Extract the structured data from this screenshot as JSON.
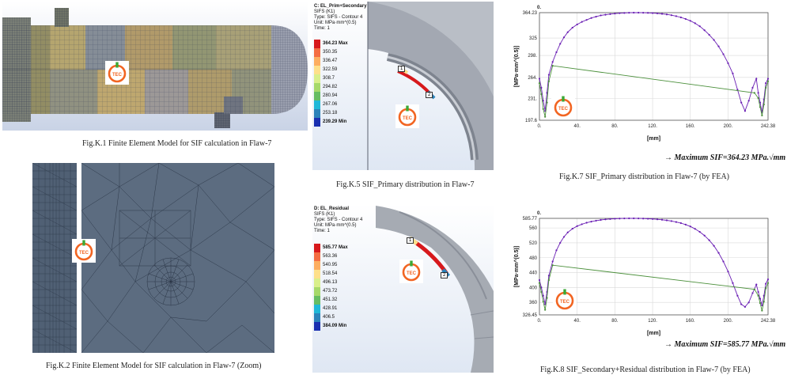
{
  "figures": {
    "k1": {
      "caption": "Fig.K.1 Finite Element Model for SIF calculation in Flaw-7"
    },
    "k2": {
      "caption": "Fig.K.2 Finite Element Model for SIF calculation in Flaw-7 (Zoom)"
    },
    "k5": {
      "caption": "Fig.K.5 SIF_Primary distribution in Flaw-7",
      "header": [
        "C: EL_Prim+Secondary",
        "SIFS (K1)",
        "Type: SIFS - Contour 4",
        "Unit: MPa·mm^(0.5)",
        "Time: 1"
      ],
      "legend": [
        "364.23 Max",
        "350.35",
        "336.47",
        "322.59",
        "308.7",
        "294.82",
        "280.94",
        "267.06",
        "253.18",
        "239.29 Min"
      ],
      "legend_colors": [
        "#d7191c",
        "#f46d43",
        "#fdae61",
        "#fee08b",
        "#d9ef8b",
        "#a6d96a",
        "#66bd63",
        "#1fb8d8",
        "#2b83ba",
        "#1a2fb0"
      ],
      "marker_1": "1",
      "marker_2": "2"
    },
    "k6": {
      "header": [
        "D: EL_Residual",
        "SIFS (K1)",
        "Type: SIFS - Contour 4",
        "Unit: MPa·mm^(0.5)",
        "Time: 1"
      ],
      "legend": [
        "585.77 Max",
        "563.36",
        "540.95",
        "518.54",
        "496.13",
        "473.72",
        "451.32",
        "428.91",
        "406.5",
        "384.09 Min"
      ],
      "legend_colors": [
        "#d7191c",
        "#f46d43",
        "#fdae61",
        "#fee08b",
        "#d9ef8b",
        "#a6d96a",
        "#66bd63",
        "#1fb8d8",
        "#2b83ba",
        "#1a2fb0"
      ],
      "marker_1": "1",
      "marker_2": "2"
    },
    "k7": {
      "caption": "Fig.K.7 SIF_Primary distribution in Flaw-7 (by FEA)",
      "note": "→ Maximum SIF=364.23 MPa.√mm"
    },
    "k8": {
      "caption": "Fig.K.8 SIF_Secondary+Residual distribution in Flaw-7 (by FEA)",
      "note": "→ Maximum SIF=585.77 MPa.√mm"
    }
  },
  "logo": {
    "text": "TEC",
    "ring_color": "#f26522",
    "accent_color": "#3ba935"
  },
  "chart_data": [
    {
      "type": "line",
      "xlabel": "[mm]",
      "ylabel": "[MPa·mm^(0.5)]",
      "origin_label": "0.",
      "xlim": [
        0,
        242.38
      ],
      "ylim": [
        197.6,
        364.23
      ],
      "xticks": [
        "0.",
        "40.",
        "80.",
        "120.",
        "160.",
        "200.",
        "242.38"
      ],
      "xtick_values": [
        0,
        40,
        80,
        120,
        160,
        200,
        242.38
      ],
      "yticks": [
        "197.6",
        "231.",
        "264.",
        "298.",
        "325",
        "364.23"
      ],
      "ytick_values": [
        197.6,
        231,
        264,
        298,
        325,
        364.23
      ],
      "grid": true,
      "series": [
        {
          "color": "#6a1fb4",
          "x": [
            0,
            2,
            4,
            6,
            8,
            10,
            14,
            18,
            22,
            26,
            30,
            35,
            40,
            45,
            50,
            55,
            60,
            65,
            70,
            75,
            80,
            85,
            90,
            95,
            100,
            105,
            110,
            115,
            120,
            125,
            130,
            135,
            140,
            145,
            150,
            155,
            160,
            165,
            170,
            175,
            180,
            185,
            190,
            195,
            200,
            205,
            210,
            214,
            218,
            222,
            226,
            230,
            232,
            234,
            236,
            238,
            240,
            242.38
          ],
          "y": [
            262,
            248,
            228,
            212,
            240,
            268,
            288,
            303,
            316,
            326,
            334,
            341,
            346,
            350,
            353,
            356,
            358,
            360,
            361,
            362,
            362.8,
            363.4,
            363.8,
            364.1,
            364.23,
            364.2,
            364.1,
            363.9,
            363.6,
            363.1,
            362.4,
            361.5,
            360.3,
            358.8,
            356.9,
            354.5,
            351.6,
            347.8,
            343.2,
            337,
            330,
            322,
            312,
            300,
            286,
            270,
            245,
            225,
            212,
            228,
            248,
            262,
            240,
            225,
            210,
            230,
            255,
            262
          ]
        },
        {
          "color": "#4a8f3a",
          "x": [
            0,
            2,
            4,
            6,
            8,
            10,
            14,
            228,
            232,
            234,
            236,
            238,
            240,
            242.38
          ],
          "y": [
            255,
            238,
            215,
            203,
            225,
            258,
            282,
            240,
            232,
            218,
            205,
            222,
            248,
            258
          ]
        }
      ]
    },
    {
      "type": "line",
      "xlabel": "[mm]",
      "ylabel": "[MPa·mm^(0.5)]",
      "origin_label": "0.",
      "xlim": [
        0,
        242.38
      ],
      "ylim": [
        326.45,
        585.77
      ],
      "xticks": [
        "0.",
        "40.",
        "80.",
        "120.",
        "160.",
        "200.",
        "242.38"
      ],
      "xtick_values": [
        0,
        40,
        80,
        120,
        160,
        200,
        242.38
      ],
      "yticks": [
        "326.45",
        "360",
        "400",
        "440",
        "480",
        "520",
        "560",
        "585.77"
      ],
      "ytick_values": [
        326.45,
        360,
        400,
        440,
        480,
        520,
        560,
        585.77
      ],
      "grid": true,
      "series": [
        {
          "color": "#6a1fb4",
          "x": [
            0,
            2,
            4,
            6,
            8,
            10,
            14,
            18,
            22,
            26,
            30,
            35,
            40,
            45,
            50,
            55,
            60,
            65,
            70,
            75,
            80,
            85,
            90,
            95,
            100,
            105,
            110,
            115,
            120,
            125,
            130,
            135,
            140,
            145,
            150,
            155,
            160,
            165,
            170,
            175,
            180,
            185,
            190,
            195,
            200,
            205,
            210,
            214,
            218,
            222,
            226,
            230,
            232,
            234,
            236,
            238,
            240,
            242.38
          ],
          "y": [
            420,
            400,
            378,
            355,
            388,
            432,
            470,
            500,
            520,
            536,
            548,
            558,
            565,
            570,
            574,
            577,
            579.5,
            581.5,
            583,
            584,
            584.8,
            585.3,
            585.6,
            585.77,
            585.75,
            585.6,
            585.3,
            584.8,
            584.1,
            583.2,
            582,
            580.5,
            578.5,
            576,
            573,
            569,
            564,
            557.5,
            549.5,
            539.5,
            527,
            512,
            493,
            470,
            443,
            412,
            378,
            355,
            348,
            360,
            385,
            408,
            388,
            370,
            352,
            378,
            410,
            422
          ]
        },
        {
          "color": "#4a8f3a",
          "x": [
            0,
            2,
            4,
            6,
            8,
            10,
            14,
            228,
            232,
            234,
            236,
            238,
            240,
            242.38
          ],
          "y": [
            412,
            388,
            362,
            340,
            372,
            420,
            460,
            395,
            378,
            358,
            338,
            362,
            398,
            412
          ]
        }
      ]
    }
  ]
}
